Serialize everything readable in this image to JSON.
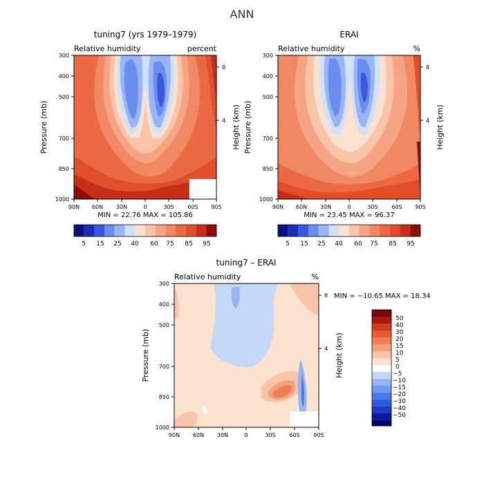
{
  "figure": {
    "title": "ANN",
    "colors": {
      "abs_scale": [
        "#08117f",
        "#1a2cb8",
        "#3b57e0",
        "#6b8cf0",
        "#9ab5f5",
        "#cfe2fa",
        "#fbe1cf",
        "#f9c4a8",
        "#f5a583",
        "#f08863",
        "#eb6a44",
        "#e04f2a",
        "#c62e1a",
        "#8d0d0a"
      ],
      "diff_scale": [
        "#000070",
        "#0a1a9c",
        "#1c3ac6",
        "#2f5ae0",
        "#4a7be9",
        "#6f98ee",
        "#97b5f2",
        "#c5d9f7",
        "#ffffff",
        "#fde2cf",
        "#f9c4a7",
        "#f5a07d",
        "#ef7e55",
        "#e65c35",
        "#d13c1f",
        "#a71610",
        "#7a0a0a"
      ]
    },
    "panels": [
      {
        "id": "model",
        "title": "tuning7 (yrs 1979–1979)",
        "left_label": "Relative humidity",
        "right_label": "percent",
        "stats_text": "MIN =  22.76   MAX = 105.86",
        "ylabel": "Pressure (mb)",
        "y2label": "Height (km)"
      },
      {
        "id": "obs",
        "title": "ERAI",
        "left_label": "Relative humidity",
        "right_label": "%",
        "stats_text": "MIN =  23.45   MAX =  96.37",
        "ylabel": "Pressure (mb)",
        "y2label": "Height (km)"
      },
      {
        "id": "diff",
        "title": "tuning7 – ERAI",
        "left_label": "Relative humidity",
        "right_label": "%",
        "stats_text": "MIN = −10.65   MAX =  18.34",
        "ylabel": "Pressure (mb)",
        "y2label": "Height (km)"
      }
    ],
    "abs_colorbar_labels": [
      "5",
      "15",
      "25",
      "40",
      "60",
      "75",
      "85",
      "95"
    ],
    "diff_colorbar_labels": [
      "50",
      "40",
      "30",
      "20",
      "15",
      "10",
      "5",
      "0",
      "−5",
      "−10",
      "−15",
      "−20",
      "−30",
      "−40",
      "−50"
    ]
  },
  "chart_data": [
    {
      "type": "heatmap",
      "title": "tuning7 (yrs 1979–1979)",
      "variable": "Relative humidity",
      "units": "percent",
      "xlabel": "",
      "ylabel": "Pressure (mb)",
      "y2label": "Height (km)",
      "x_ticks": [
        "90N",
        "60N",
        "30N",
        "0",
        "30S",
        "60S",
        "90S"
      ],
      "y_ticks": [
        300,
        400,
        500,
        700,
        850,
        1000
      ],
      "y2_ticks": [
        8,
        4
      ],
      "ylim": [
        1000,
        300
      ],
      "min": 22.76,
      "max": 105.86,
      "contour_levels": [
        5,
        10,
        15,
        20,
        25,
        30,
        35,
        40,
        50,
        60,
        70,
        75,
        80,
        85,
        90,
        95
      ],
      "lat": [
        90,
        60,
        30,
        0,
        -30,
        -60,
        -90
      ],
      "pressure": [
        300,
        400,
        500,
        700,
        850,
        1000
      ],
      "values": [
        [
          75,
          60,
          40,
          55,
          35,
          55,
          80
        ],
        [
          70,
          50,
          35,
          45,
          30,
          45,
          75
        ],
        [
          65,
          45,
          32,
          40,
          27,
          40,
          70
        ],
        [
          70,
          55,
          38,
          50,
          35,
          50,
          75
        ],
        [
          85,
          75,
          60,
          75,
          70,
          75,
          80
        ],
        [
          95,
          80,
          75,
          85,
          80,
          75,
          85
        ]
      ]
    },
    {
      "type": "heatmap",
      "title": "ERAI",
      "variable": "Relative humidity",
      "units": "%",
      "xlabel": "",
      "ylabel": "Pressure (mb)",
      "y2label": "Height (km)",
      "x_ticks": [
        "90N",
        "60N",
        "30N",
        "0",
        "30S",
        "60S",
        "90S"
      ],
      "y_ticks": [
        300,
        400,
        500,
        700,
        850,
        1000
      ],
      "y2_ticks": [
        8,
        4
      ],
      "ylim": [
        1000,
        300
      ],
      "min": 23.45,
      "max": 96.37,
      "contour_levels": [
        5,
        10,
        15,
        20,
        25,
        30,
        35,
        40,
        50,
        60,
        70,
        75,
        80,
        85,
        90,
        95
      ],
      "lat": [
        90,
        60,
        30,
        0,
        -30,
        -60,
        -90
      ],
      "pressure": [
        300,
        400,
        500,
        700,
        850,
        1000
      ],
      "values": [
        [
          70,
          55,
          38,
          50,
          33,
          50,
          75
        ],
        [
          65,
          50,
          33,
          45,
          28,
          45,
          70
        ],
        [
          60,
          45,
          30,
          40,
          25,
          40,
          65
        ],
        [
          65,
          55,
          40,
          50,
          35,
          50,
          70
        ],
        [
          80,
          70,
          60,
          75,
          65,
          70,
          80
        ],
        [
          85,
          75,
          70,
          80,
          75,
          70,
          85
        ]
      ]
    },
    {
      "type": "heatmap",
      "title": "tuning7 – ERAI",
      "variable": "Relative humidity",
      "units": "%",
      "xlabel": "",
      "ylabel": "Pressure (mb)",
      "y2label": "Height (km)",
      "x_ticks": [
        "90N",
        "60N",
        "30N",
        "0",
        "30S",
        "60S",
        "90S"
      ],
      "y_ticks": [
        300,
        400,
        500,
        700,
        850,
        1000
      ],
      "y2_ticks": [
        8,
        4
      ],
      "ylim": [
        1000,
        300
      ],
      "min": -10.65,
      "max": 18.34,
      "contour_levels": [
        -50,
        -40,
        -30,
        -20,
        -15,
        -10,
        -5,
        0,
        5,
        10,
        15,
        20,
        30,
        40,
        50
      ],
      "lat": [
        90,
        60,
        30,
        0,
        -30,
        -60,
        -90
      ],
      "pressure": [
        300,
        400,
        500,
        700,
        850,
        1000
      ],
      "values": [
        [
          5,
          2,
          -2,
          -5,
          3,
          5,
          3
        ],
        [
          3,
          2,
          -3,
          -2,
          3,
          5,
          2
        ],
        [
          2,
          2,
          -2,
          -2,
          3,
          3,
          2
        ],
        [
          3,
          2,
          -2,
          0,
          5,
          8,
          -5
        ],
        [
          2,
          3,
          2,
          3,
          10,
          15,
          -5
        ],
        [
          3,
          5,
          5,
          5,
          3,
          0,
          5
        ]
      ]
    }
  ]
}
